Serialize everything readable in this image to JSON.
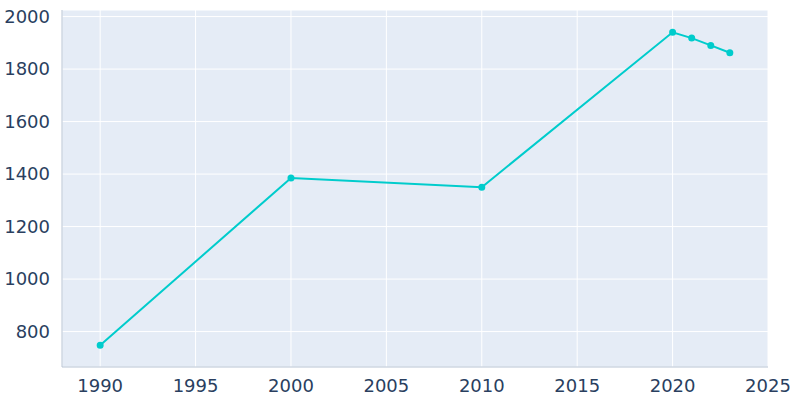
{
  "chart_data": {
    "type": "line",
    "x": [
      1990,
      2000,
      2010,
      2020,
      2021,
      2022,
      2023
    ],
    "values": [
      748,
      1385,
      1350,
      1940,
      1918,
      1890,
      1862
    ],
    "color": "#00cccc",
    "marker": "circle",
    "xlim": [
      1988,
      2025
    ],
    "xticks": [
      1990,
      1995,
      2000,
      2005,
      2010,
      2015,
      2020,
      2025
    ],
    "ylim": [
      665,
      2025
    ],
    "yticks": [
      800,
      1000,
      1200,
      1400,
      1600,
      1800,
      2000
    ],
    "grid": true
  }
}
